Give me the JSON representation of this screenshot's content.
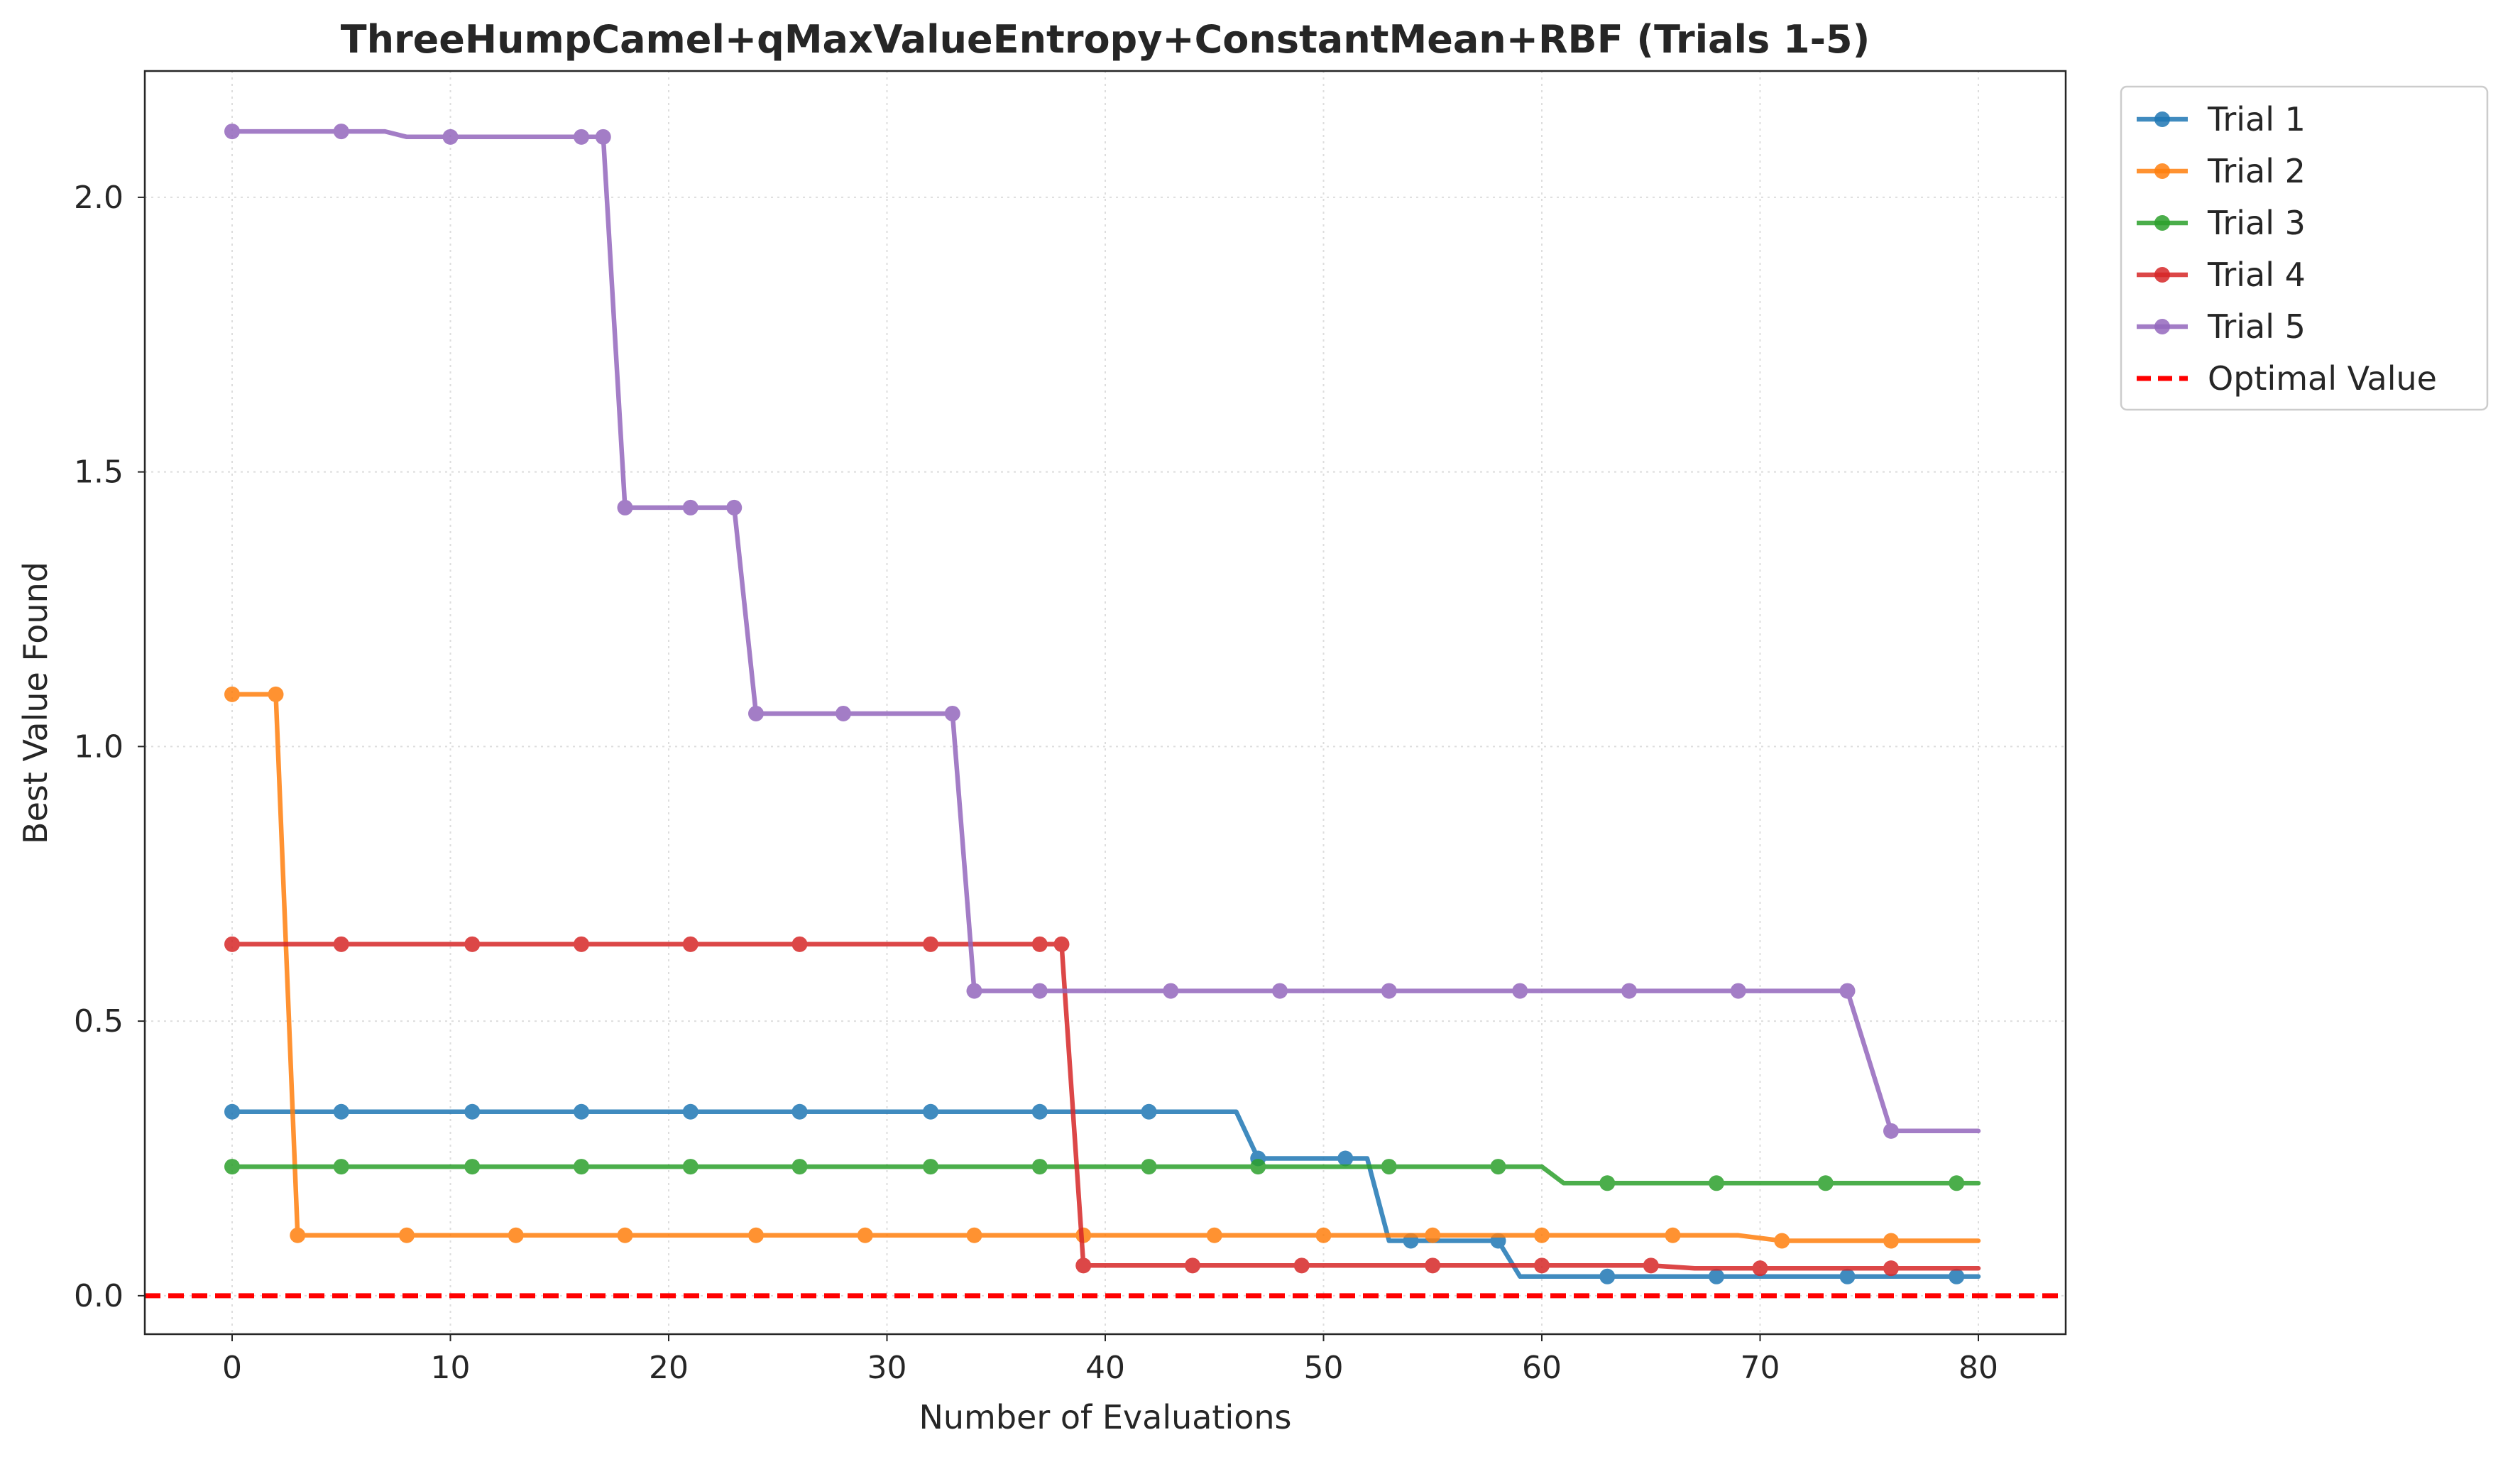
{
  "chart_data": {
    "type": "line",
    "title": "ThreeHumpCamel+qMaxValueEntropy+ConstantMean+RBF (Trials 1-5)",
    "xlabel": "Number of Evaluations",
    "ylabel": "Best Value Found",
    "xlim": [
      -4,
      84
    ],
    "ylim": [
      -0.07,
      2.23
    ],
    "xticks": [
      0,
      10,
      20,
      30,
      40,
      50,
      60,
      70,
      80
    ],
    "xtick_labels": [
      "0",
      "10",
      "20",
      "30",
      "40",
      "50",
      "60",
      "70",
      "80"
    ],
    "yticks": [
      0.0,
      0.5,
      1.0,
      1.5,
      2.0
    ],
    "ytick_labels": [
      "0.0",
      "0.5",
      "1.0",
      "1.5",
      "2.0"
    ],
    "grid": true,
    "legend_position": "outside-top-right",
    "series": [
      {
        "name": "Trial 1",
        "color": "#1f77b4",
        "x": [
          0,
          5,
          11,
          16,
          21,
          26,
          32,
          37,
          42,
          46,
          47,
          51,
          52,
          53,
          54,
          58,
          59,
          63,
          68,
          74,
          79,
          80
        ],
        "y": [
          0.335,
          0.335,
          0.335,
          0.335,
          0.335,
          0.335,
          0.335,
          0.335,
          0.335,
          0.335,
          0.25,
          0.25,
          0.25,
          0.1,
          0.1,
          0.1,
          0.035,
          0.035,
          0.035,
          0.035,
          0.035,
          0.035
        ],
        "markers": [
          0,
          5,
          11,
          16,
          21,
          26,
          32,
          37,
          42,
          47,
          51,
          54,
          58,
          63,
          68,
          74,
          79
        ]
      },
      {
        "name": "Trial 2",
        "color": "#ff7f0e",
        "x": [
          0,
          2,
          3,
          8,
          13,
          18,
          24,
          29,
          34,
          39,
          45,
          50,
          55,
          60,
          66,
          69,
          71,
          76,
          80
        ],
        "y": [
          1.095,
          1.095,
          0.11,
          0.11,
          0.11,
          0.11,
          0.11,
          0.11,
          0.11,
          0.11,
          0.11,
          0.11,
          0.11,
          0.11,
          0.11,
          0.11,
          0.1,
          0.1,
          0.1
        ],
        "markers": [
          0,
          2,
          3,
          8,
          13,
          18,
          24,
          29,
          34,
          39,
          45,
          50,
          55,
          60,
          66,
          71,
          76
        ]
      },
      {
        "name": "Trial 3",
        "color": "#2ca02c",
        "x": [
          0,
          5,
          11,
          16,
          21,
          26,
          32,
          37,
          42,
          47,
          53,
          58,
          60,
          61,
          63,
          68,
          73,
          79,
          80
        ],
        "y": [
          0.235,
          0.235,
          0.235,
          0.235,
          0.235,
          0.235,
          0.235,
          0.235,
          0.235,
          0.235,
          0.235,
          0.235,
          0.235,
          0.205,
          0.205,
          0.205,
          0.205,
          0.205,
          0.205
        ],
        "markers": [
          0,
          5,
          11,
          16,
          21,
          26,
          32,
          37,
          42,
          47,
          53,
          58,
          63,
          68,
          73,
          79
        ]
      },
      {
        "name": "Trial 4",
        "color": "#d62728",
        "x": [
          0,
          5,
          11,
          16,
          21,
          26,
          32,
          37,
          38,
          39,
          44,
          49,
          55,
          60,
          65,
          67,
          70,
          76,
          80
        ],
        "y": [
          0.64,
          0.64,
          0.64,
          0.64,
          0.64,
          0.64,
          0.64,
          0.64,
          0.64,
          0.055,
          0.055,
          0.055,
          0.055,
          0.055,
          0.055,
          0.05,
          0.05,
          0.05,
          0.05
        ],
        "markers": [
          0,
          5,
          11,
          16,
          21,
          26,
          32,
          37,
          38,
          39,
          44,
          49,
          55,
          60,
          65,
          70,
          76
        ]
      },
      {
        "name": "Trial 5",
        "color": "#9467bd",
        "x": [
          0,
          5,
          7,
          8,
          10,
          16,
          17,
          18,
          21,
          23,
          24,
          28,
          33,
          34,
          37,
          43,
          48,
          53,
          59,
          64,
          69,
          74,
          76,
          80
        ],
        "y": [
          2.12,
          2.12,
          2.12,
          2.11,
          2.11,
          2.11,
          2.11,
          1.435,
          1.435,
          1.435,
          1.06,
          1.06,
          1.06,
          0.555,
          0.555,
          0.555,
          0.555,
          0.555,
          0.555,
          0.555,
          0.555,
          0.555,
          0.3,
          0.3
        ],
        "markers": [
          0,
          5,
          10,
          16,
          17,
          18,
          21,
          23,
          24,
          28,
          33,
          34,
          37,
          43,
          48,
          53,
          59,
          64,
          69,
          74,
          76
        ]
      }
    ],
    "reference_line": {
      "name": "Optimal Value",
      "y": 0.0,
      "color": "#ff0000",
      "style": "dashed"
    }
  }
}
